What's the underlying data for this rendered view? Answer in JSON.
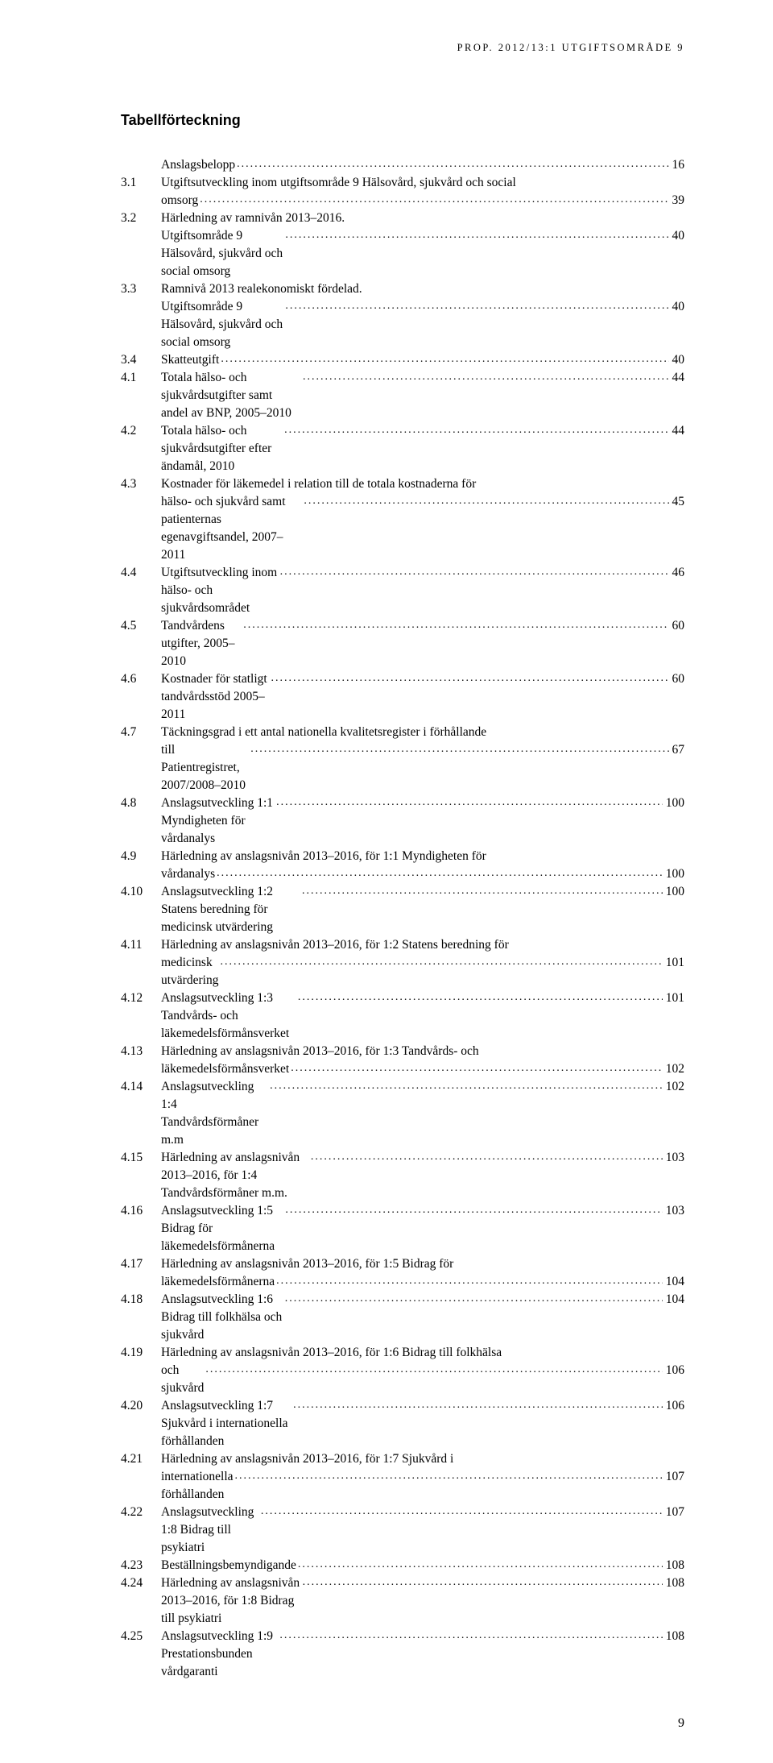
{
  "running_header": "PROP. 2012/13:1 UTGIFTSOMRÅDE 9",
  "title": "Tabellförteckning",
  "page_number": "9",
  "entries": [
    {
      "num": "",
      "text": "Anslagsbelopp",
      "page": "16"
    },
    {
      "num": "3.1",
      "text": "Utgiftsutveckling inom utgiftsområde 9 Hälsovård, sjukvård och social omsorg",
      "page": "39"
    },
    {
      "num": "3.2",
      "text": "Härledning av ramnivån 2013–2016.",
      "page": ""
    },
    {
      "num": "",
      "text": "Utgiftsområde 9 Hälsovård, sjukvård och social omsorg",
      "page": "40",
      "continue": true
    },
    {
      "num": "3.3",
      "text": "Ramnivå 2013 realekonomiskt fördelad.",
      "page": ""
    },
    {
      "num": "",
      "text": "Utgiftsområde 9 Hälsovård, sjukvård och social omsorg",
      "page": "40",
      "continue": true
    },
    {
      "num": "3.4",
      "text": "Skatteutgift",
      "page": "40"
    },
    {
      "num": "4.1",
      "text": "Totala hälso- och sjukvårdsutgifter samt andel av BNP, 2005–2010",
      "page": "44"
    },
    {
      "num": "4.2",
      "text": "Totala hälso- och sjukvårdsutgifter efter ändamål, 2010",
      "page": "44"
    },
    {
      "num": "4.3",
      "text": "Kostnader för läkemedel i relation till de totala kostnaderna för hälso- och sjukvård samt patienternas egenavgiftsandel, 2007–2011",
      "page": "45"
    },
    {
      "num": "4.4",
      "text": "Utgiftsutveckling inom hälso- och sjukvårdsområdet",
      "page": "46"
    },
    {
      "num": "4.5",
      "text": "Tandvårdens utgifter, 2005–2010",
      "page": "60"
    },
    {
      "num": "4.6",
      "text": "Kostnader för statligt tandvårdsstöd 2005–2011",
      "page": "60"
    },
    {
      "num": "4.7",
      "text": "Täckningsgrad i ett antal nationella kvalitetsregister i förhållande till Patientregistret, 2007/2008–2010",
      "page": "67"
    },
    {
      "num": "4.8",
      "text": "Anslagsutveckling 1:1 Myndigheten för vårdanalys",
      "page": "100"
    },
    {
      "num": "4.9",
      "text": "Härledning av anslagsnivån 2013–2016, för 1:1 Myndigheten för vårdanalys",
      "page": "100"
    },
    {
      "num": "4.10",
      "text": "Anslagsutveckling 1:2 Statens beredning för medicinsk utvärdering",
      "page": "100"
    },
    {
      "num": "4.11",
      "text": "Härledning av anslagsnivån 2013–2016, för 1:2 Statens beredning för medicinsk utvärdering",
      "page": "101"
    },
    {
      "num": "4.12",
      "text": "Anslagsutveckling 1:3 Tandvårds- och läkemedelsförmånsverket",
      "page": "101"
    },
    {
      "num": "4.13",
      "text": "Härledning av anslagsnivån 2013–2016, för 1:3 Tandvårds- och läkemedelsförmånsverket",
      "page": "102"
    },
    {
      "num": "4.14",
      "text": "Anslagsutveckling 1:4 Tandvårdsförmåner m.m",
      "page": "102"
    },
    {
      "num": "4.15",
      "text": "Härledning av anslagsnivån 2013–2016, för 1:4 Tandvårdsförmåner m.m.",
      "page": "103"
    },
    {
      "num": "4.16",
      "text": "Anslagsutveckling 1:5 Bidrag för läkemedelsförmånerna",
      "page": "103"
    },
    {
      "num": "4.17",
      "text": "Härledning av anslagsnivån 2013–2016, för 1:5 Bidrag för läkemedelsförmånerna",
      "page": "104"
    },
    {
      "num": "4.18",
      "text": "Anslagsutveckling 1:6 Bidrag till folkhälsa och sjukvård",
      "page": "104"
    },
    {
      "num": "4.19",
      "text": "Härledning av anslagsnivån 2013–2016, för 1:6 Bidrag till folkhälsa och sjukvård",
      "page": "106"
    },
    {
      "num": "4.20",
      "text": "Anslagsutveckling 1:7 Sjukvård i internationella förhållanden",
      "page": "106"
    },
    {
      "num": "4.21",
      "text": "Härledning av anslagsnivån 2013–2016, för 1:7 Sjukvård i internationella förhållanden",
      "page": "107"
    },
    {
      "num": "4.22",
      "text": "Anslagsutveckling 1:8 Bidrag till psykiatri",
      "page": "107"
    },
    {
      "num": "4.23",
      "text": "Beställningsbemyndigande",
      "page": "108"
    },
    {
      "num": "4.24",
      "text": "Härledning av anslagsnivån 2013–2016, för 1:8 Bidrag till psykiatri",
      "page": "108"
    },
    {
      "num": "4.25",
      "text": "Anslagsutveckling 1:9 Prestationsbunden vårdgaranti",
      "page": "108"
    }
  ]
}
